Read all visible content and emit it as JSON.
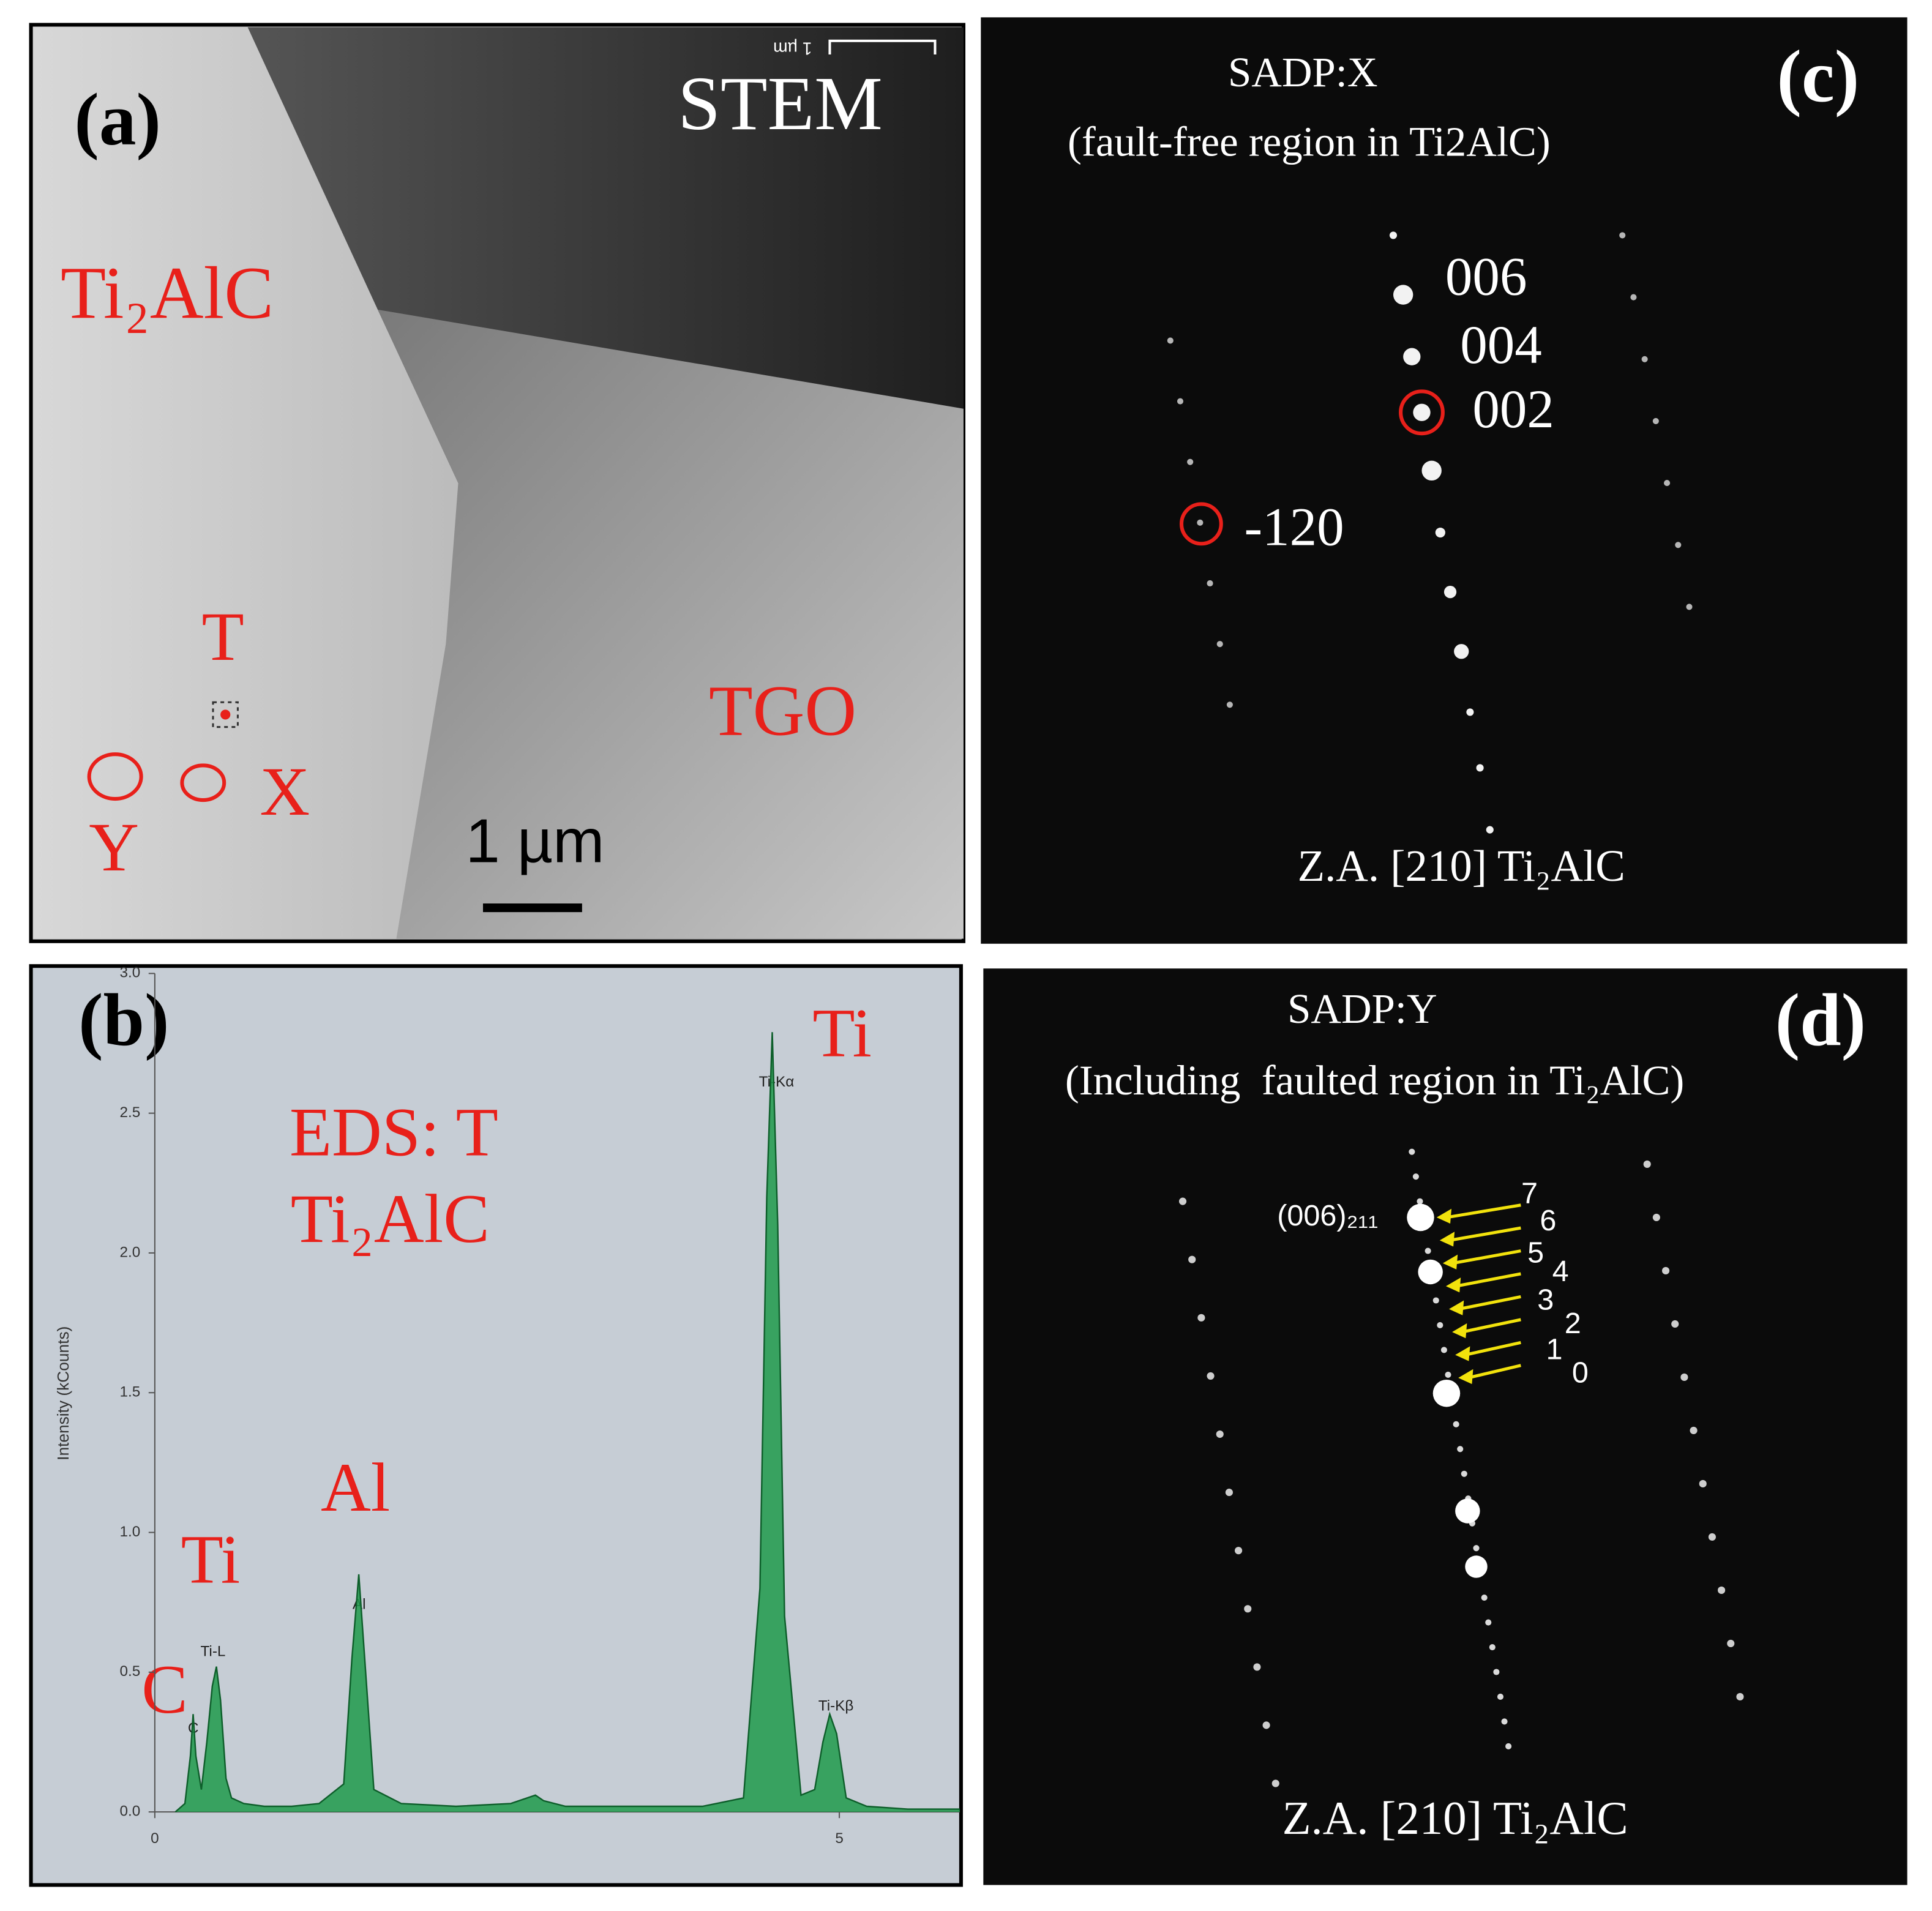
{
  "panel_a": {
    "label": "(a)",
    "mode": "STEM",
    "phase": "Ti₂AlC",
    "point_t": "T",
    "region_x": "X",
    "region_y": "Y",
    "oxide": "TGO",
    "scale_bar": "1 µm",
    "top_scale": "1 µm"
  },
  "chart_data": {
    "type": "area",
    "panel_label": "(b)",
    "ylabel": "Intensity (kCounts)",
    "color": "#1f9a4b",
    "x": [
      0.15,
      0.22,
      0.26,
      0.28,
      0.3,
      0.34,
      0.38,
      0.42,
      0.45,
      0.48,
      0.52,
      0.56,
      0.65,
      0.8,
      1.0,
      1.2,
      1.38,
      1.44,
      1.49,
      1.54,
      1.6,
      1.8,
      2.2,
      2.6,
      2.72,
      2.78,
      2.84,
      3.0,
      3.5,
      4.0,
      4.3,
      4.42,
      4.47,
      4.51,
      4.55,
      4.6,
      4.72,
      4.82,
      4.88,
      4.93,
      4.98,
      5.05,
      5.2,
      5.5,
      5.88
    ],
    "values": [
      0.0,
      0.03,
      0.2,
      0.35,
      0.2,
      0.08,
      0.25,
      0.45,
      0.52,
      0.4,
      0.12,
      0.05,
      0.03,
      0.02,
      0.02,
      0.03,
      0.1,
      0.55,
      0.85,
      0.5,
      0.08,
      0.03,
      0.02,
      0.03,
      0.05,
      0.06,
      0.04,
      0.02,
      0.02,
      0.02,
      0.05,
      0.8,
      2.2,
      2.79,
      2.1,
      0.7,
      0.06,
      0.08,
      0.25,
      0.35,
      0.28,
      0.05,
      0.02,
      0.01,
      0.01
    ],
    "xlim": [
      0,
      5.88
    ],
    "xticks": [
      0,
      5
    ],
    "ylim": [
      0,
      3
    ],
    "yticks": [
      {
        "value": 0,
        "label": "0.0"
      },
      {
        "value": 0.5,
        "label": "0.5"
      },
      {
        "value": 1,
        "label": "1.0"
      },
      {
        "value": 1.5,
        "label": "1.5"
      },
      {
        "value": 2,
        "label": "2.0"
      },
      {
        "value": 2.5,
        "label": "2.5"
      },
      {
        "value": 3,
        "label": "3.0"
      }
    ],
    "peak_labels": [
      "C",
      "Ti-L",
      "Al",
      "Ti-Kα",
      "Ti-Kβ"
    ],
    "annotations": [
      "Ti",
      "EDS: T",
      "Ti₂AlC",
      "Al",
      "Ti",
      "C"
    ]
  },
  "panel_c": {
    "label": "(c)",
    "title": "SADP:X",
    "subtitle": "(fault-free region in Ti2AlC)",
    "spots": [
      "006",
      "004",
      "002",
      "-120"
    ],
    "zone_axis": "Z.A. [210] Ti₂AlC"
  },
  "panel_d": {
    "label": "(d)",
    "title": "SADP:Y",
    "subtitle": "(Including  faulted region in Ti₂AlC)",
    "reflection": "(006)₂₁₁",
    "arrows": [
      "7",
      "6",
      "5",
      "4",
      "3",
      "2",
      "1",
      "0"
    ],
    "zone_axis": "Z.A. [210] Ti₂AlC"
  }
}
